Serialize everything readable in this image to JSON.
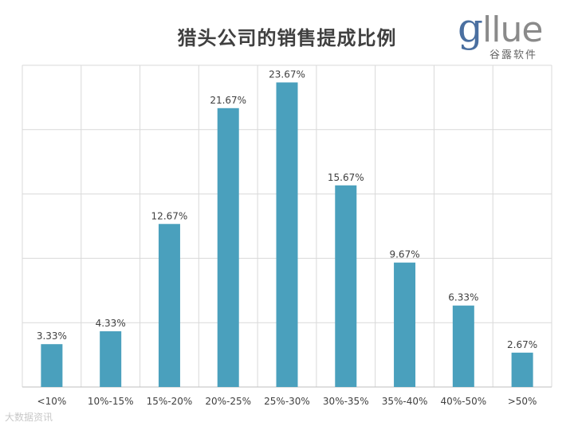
{
  "title": "猎头公司的销售提成比例",
  "logo": {
    "word_first": "g",
    "word_rest": "llue",
    "subtitle": "谷露软件"
  },
  "watermark": "大数据资讯",
  "colors": {
    "bar": "#4aa0bd",
    "grid": "#d9d9d9",
    "axis": "#bfbfbf",
    "text": "#404040"
  },
  "chart_data": {
    "type": "bar",
    "title": "猎头公司的销售提成比例",
    "categories": [
      "<10%",
      "10%-15%",
      "15%-20%",
      "20%-25%",
      "25%-30%",
      "30%-35%",
      "35%-40%",
      "40%-50%",
      ">50%"
    ],
    "values": [
      3.33,
      4.33,
      12.67,
      21.67,
      23.67,
      15.67,
      9.67,
      6.33,
      2.67
    ],
    "data_labels": [
      "3.33%",
      "4.33%",
      "12.67%",
      "21.67%",
      "23.67%",
      "15.67%",
      "9.67%",
      "6.33%",
      "2.67%"
    ],
    "unit": "%",
    "ylim": [
      0,
      25
    ],
    "grid": true,
    "xlabel": "",
    "ylabel": ""
  }
}
